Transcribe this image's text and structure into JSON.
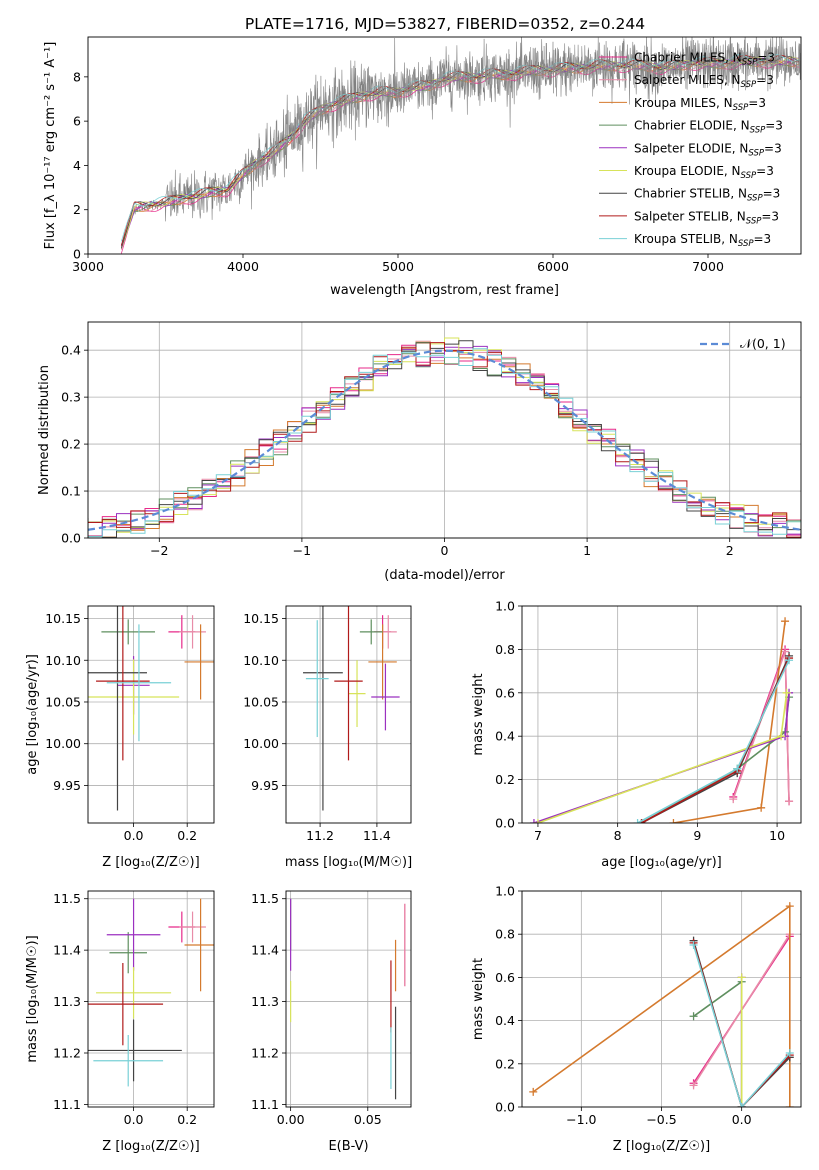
{
  "figure": {
    "title": "PLATE=1716, MJD=53827, FIBERID=0352, z=0.244"
  },
  "series_styles": [
    {
      "name": "Chabrier MILES, N_SSP=3",
      "color": "#e7298a"
    },
    {
      "name": "Salpeter MILES, N_SSP=3",
      "color": "#e88ca8"
    },
    {
      "name": "Kroupa MILES, N_SSP=3",
      "color": "#d47a2e"
    },
    {
      "name": "Chabrier ELODIE, N_SSP=3",
      "color": "#5f8f5f"
    },
    {
      "name": "Salpeter ELODIE, N_SSP=3",
      "color": "#9b30c0"
    },
    {
      "name": "Kroupa ELODIE, N_SSP=3",
      "color": "#d7e35a"
    },
    {
      "name": "Chabrier STELIB, N_SSP=3",
      "color": "#444444"
    },
    {
      "name": "Salpeter STELIB, N_SSP=3",
      "color": "#b11a1a"
    },
    {
      "name": "Kroupa STELIB, N_SSP=3",
      "color": "#79d0d6"
    }
  ],
  "chart_data": [
    {
      "id": "spectrum",
      "type": "line",
      "title": "PLATE=1716, MJD=53827, FIBERID=0352, z=0.244",
      "xlabel": "wavelength [Angstrom, rest frame]",
      "ylabel": "Flux [f_λ 10⁻¹⁷ erg cm⁻² s⁻¹ A⁻¹]",
      "xlim": [
        3000,
        7600
      ],
      "ylim": [
        0,
        9.8
      ],
      "xticks": [
        "3000",
        "4000",
        "5000",
        "6000",
        "7000"
      ],
      "yticks": [
        "0",
        "2",
        "4",
        "6",
        "8"
      ],
      "grid": false,
      "legend_position": "top-right",
      "legend": [
        "Chabrier MILES, N_SSP=3",
        "Salpeter MILES, N_SSP=3",
        "Kroupa MILES, N_SSP=3",
        "Chabrier ELODIE, N_SSP=3",
        "Salpeter ELODIE, N_SSP=3",
        "Kroupa ELODIE, N_SSP=3",
        "Chabrier STELIB, N_SSP=3",
        "Salpeter STELIB, N_SSP=3",
        "Kroupa STELIB, N_SSP=3"
      ],
      "data_envelope": {
        "x": [
          3200,
          3300,
          3400,
          3500,
          3600,
          3700,
          3800,
          3900,
          4000,
          4100,
          4200,
          4300,
          4400,
          4500,
          4600,
          4700,
          4800,
          4900,
          5000,
          5100,
          5200,
          5300,
          5400,
          5500,
          5600,
          5700,
          5800,
          5900,
          6000,
          6100,
          6200,
          6300,
          6400,
          6500,
          6600,
          6700,
          6800,
          6900,
          7000,
          7100,
          7200,
          7300,
          7400,
          7500,
          7600
        ],
        "y": [
          0,
          2.1,
          2.2,
          2.3,
          2.5,
          2.6,
          2.8,
          2.9,
          3.6,
          4.2,
          4.6,
          5.2,
          6.0,
          6.5,
          6.8,
          7.0,
          7.2,
          7.3,
          7.3,
          7.5,
          7.6,
          7.9,
          8.0,
          8.0,
          8.1,
          8.1,
          8.2,
          8.3,
          8.3,
          8.4,
          8.4,
          8.5,
          8.5,
          8.5,
          8.5,
          8.4,
          8.5,
          8.6,
          8.6,
          8.6,
          8.7,
          8.7,
          8.7,
          8.7,
          8.7
        ]
      }
    },
    {
      "id": "residuals",
      "type": "histogram",
      "xlabel": "(data-model)/error",
      "ylabel": "Normed distribution",
      "xlim": [
        -2.5,
        2.5
      ],
      "ylim": [
        0,
        0.46
      ],
      "xticks": [
        "−2",
        "−1",
        "0",
        "1",
        "2"
      ],
      "yticks": [
        "0.0",
        "0.1",
        "0.2",
        "0.3",
        "0.4"
      ],
      "grid": true,
      "legend": [
        "𝒩(0, 1)"
      ],
      "legend_position": "top-right",
      "reference_curve": "standard normal N(0,1)",
      "bin_width": 0.1
    },
    {
      "id": "age_vs_Z",
      "type": "scatter_errorbars",
      "xlabel": "Z [log₁₀(Z/Z☉)]",
      "ylabel": "age  [log₁₀(age/yr)]",
      "xlim": [
        -0.17,
        0.3
      ],
      "ylim": [
        9.905,
        10.165
      ],
      "xticks": [
        "0.0",
        "0.2"
      ],
      "yticks": [
        "9.95",
        "10.00",
        "10.05",
        "10.10",
        "10.15"
      ],
      "grid": true,
      "points": [
        {
          "series": "Chabrier MILES, N_SSP=3",
          "x": 0.18,
          "y": 10.134,
          "xerr": 0.05,
          "yerr": 0.02
        },
        {
          "series": "Salpeter MILES, N_SSP=3",
          "x": 0.22,
          "y": 10.134,
          "xerr": 0.05,
          "yerr": 0.02
        },
        {
          "series": "Kroupa MILES, N_SSP=3",
          "x": 0.25,
          "y": 10.098,
          "xerr": 0.06,
          "yerr": 0.045
        },
        {
          "series": "Chabrier ELODIE, N_SSP=3",
          "x": -0.02,
          "y": 10.134,
          "xerr": 0.1,
          "yerr": 0.015
        },
        {
          "series": "Salpeter ELODIE, N_SSP=3",
          "x": 0.0,
          "y": 10.07,
          "xerr": 0.06,
          "yerr": 0.035
        },
        {
          "series": "Kroupa ELODIE, N_SSP=3",
          "x": 0.0,
          "y": 10.056,
          "xerr": 0.17,
          "yerr": 0.045
        },
        {
          "series": "Chabrier STELIB, N_SSP=3",
          "x": -0.06,
          "y": 10.085,
          "xerr": 0.11,
          "yerr": 0.165
        },
        {
          "series": "Salpeter STELIB, N_SSP=3",
          "x": -0.04,
          "y": 10.075,
          "xerr": 0.1,
          "yerr": 0.095
        },
        {
          "series": "Kroupa STELIB, N_SSP=3",
          "x": 0.02,
          "y": 10.073,
          "xerr": 0.12,
          "yerr": 0.07
        }
      ]
    },
    {
      "id": "age_vs_mass",
      "type": "scatter_errorbars",
      "xlabel": "mass [log₁₀(M/M☉)]",
      "ylabel": "",
      "xlim": [
        11.08,
        11.52
      ],
      "ylim": [
        9.905,
        10.165
      ],
      "xticks": [
        "11.2",
        "11.4"
      ],
      "yticks": [
        "9.95",
        "10.00",
        "10.05",
        "10.10",
        "10.15"
      ],
      "grid": true,
      "points": [
        {
          "series": "Chabrier MILES, N_SSP=3",
          "x": 11.42,
          "y": 10.134,
          "xerr": 0.03,
          "yerr": 0.02
        },
        {
          "series": "Salpeter MILES, N_SSP=3",
          "x": 11.44,
          "y": 10.134,
          "xerr": 0.03,
          "yerr": 0.02
        },
        {
          "series": "Kroupa MILES, N_SSP=3",
          "x": 11.42,
          "y": 10.098,
          "xerr": 0.05,
          "yerr": 0.045
        },
        {
          "series": "Chabrier ELODIE, N_SSP=3",
          "x": 11.38,
          "y": 10.134,
          "xerr": 0.04,
          "yerr": 0.015
        },
        {
          "series": "Salpeter ELODIE, N_SSP=3",
          "x": 11.43,
          "y": 10.056,
          "xerr": 0.05,
          "yerr": 0.04
        },
        {
          "series": "Kroupa ELODIE, N_SSP=3",
          "x": 11.33,
          "y": 10.06,
          "xerr": 0.03,
          "yerr": 0.04
        },
        {
          "series": "Chabrier STELIB, N_SSP=3",
          "x": 11.21,
          "y": 10.085,
          "xerr": 0.07,
          "yerr": 0.165
        },
        {
          "series": "Salpeter STELIB, N_SSP=3",
          "x": 11.3,
          "y": 10.075,
          "xerr": 0.05,
          "yerr": 0.095
        },
        {
          "series": "Kroupa STELIB, N_SSP=3",
          "x": 11.19,
          "y": 10.078,
          "xerr": 0.04,
          "yerr": 0.07
        }
      ]
    },
    {
      "id": "massweight_vs_age",
      "type": "line",
      "xlabel": "age  [log₁₀(age/yr)]",
      "ylabel": "mass weight",
      "xlim": [
        6.8,
        10.3
      ],
      "ylim": [
        0,
        1
      ],
      "xticks": [
        "7",
        "8",
        "9",
        "10"
      ],
      "yticks": [
        "0.0",
        "0.2",
        "0.4",
        "0.6",
        "0.8",
        "1.0"
      ],
      "grid": true,
      "series": [
        {
          "name": "Chabrier MILES, N_SSP=3",
          "x": [
            9.45,
            10.1,
            10.15
          ],
          "y": [
            0.12,
            0.8,
            0.1
          ]
        },
        {
          "name": "Salpeter MILES, N_SSP=3",
          "x": [
            9.45,
            10.1,
            10.15
          ],
          "y": [
            0.11,
            0.79,
            0.1
          ]
        },
        {
          "name": "Kroupa MILES, N_SSP=3",
          "x": [
            8.7,
            9.8,
            10.1
          ],
          "y": [
            0.0,
            0.07,
            0.93
          ]
        },
        {
          "name": "Chabrier ELODIE, N_SSP=3",
          "x": [
            8.3,
            9.5,
            10.1,
            10.15
          ],
          "y": [
            0.0,
            0.25,
            0.42,
            0.58
          ]
        },
        {
          "name": "Salpeter ELODIE, N_SSP=3",
          "x": [
            6.95,
            10.1,
            10.15
          ],
          "y": [
            0.0,
            0.4,
            0.6
          ]
        },
        {
          "name": "Kroupa ELODIE, N_SSP=3",
          "x": [
            7.0,
            10.05,
            10.12
          ],
          "y": [
            0.0,
            0.4,
            0.6
          ]
        },
        {
          "name": "Chabrier STELIB, N_SSP=3",
          "x": [
            8.3,
            9.5,
            10.15
          ],
          "y": [
            0.0,
            0.23,
            0.77
          ]
        },
        {
          "name": "Salpeter STELIB, N_SSP=3",
          "x": [
            8.3,
            9.5,
            10.15
          ],
          "y": [
            0.0,
            0.24,
            0.76
          ]
        },
        {
          "name": "Kroupa STELIB, N_SSP=3",
          "x": [
            8.25,
            9.5,
            10.15
          ],
          "y": [
            0.0,
            0.25,
            0.75
          ]
        }
      ]
    },
    {
      "id": "mass_vs_Z",
      "type": "scatter_errorbars",
      "xlabel": "Z [log₁₀(Z/Z☉)]",
      "ylabel": "mass [log₁₀(M/M☉)]",
      "xlim": [
        -0.17,
        0.3
      ],
      "ylim": [
        11.095,
        11.515
      ],
      "xticks": [
        "0.0",
        "0.2"
      ],
      "yticks": [
        "11.1",
        "11.2",
        "11.3",
        "11.4",
        "11.5"
      ],
      "grid": true,
      "points": [
        {
          "series": "Chabrier MILES, N_SSP=3",
          "x": 0.18,
          "y": 11.445,
          "xerr": 0.05,
          "yerr": 0.03
        },
        {
          "series": "Salpeter MILES, N_SSP=3",
          "x": 0.22,
          "y": 11.445,
          "xerr": 0.05,
          "yerr": 0.03
        },
        {
          "series": "Kroupa MILES, N_SSP=3",
          "x": 0.25,
          "y": 11.41,
          "xerr": 0.06,
          "yerr": 0.09
        },
        {
          "series": "Chabrier ELODIE, N_SSP=3",
          "x": -0.02,
          "y": 11.395,
          "xerr": 0.07,
          "yerr": 0.04
        },
        {
          "series": "Salpeter ELODIE, N_SSP=3",
          "x": 0.0,
          "y": 11.43,
          "xerr": 0.1,
          "yerr": 0.07
        },
        {
          "series": "Kroupa ELODIE, N_SSP=3",
          "x": 0.0,
          "y": 11.317,
          "xerr": 0.14,
          "yerr": 0.05
        },
        {
          "series": "Chabrier STELIB, N_SSP=3",
          "x": 0.0,
          "y": 11.205,
          "xerr": 0.18,
          "yerr": 0.06
        },
        {
          "series": "Salpeter STELIB, N_SSP=3",
          "x": -0.04,
          "y": 11.295,
          "xerr": 0.15,
          "yerr": 0.08
        },
        {
          "series": "Kroupa STELIB, N_SSP=3",
          "x": -0.02,
          "y": 11.185,
          "xerr": 0.13,
          "yerr": 0.05
        }
      ]
    },
    {
      "id": "mass_vs_ebv",
      "type": "scatter_errorbars",
      "xlabel": "E(B-V)",
      "ylabel": "",
      "xlim": [
        -0.003,
        0.078
      ],
      "ylim": [
        11.095,
        11.515
      ],
      "xticks": [
        "0.00",
        "0.05"
      ],
      "yticks": [
        "11.1",
        "11.2",
        "11.3",
        "11.4",
        "11.5"
      ],
      "grid": true,
      "points": [
        {
          "series": "Chabrier MILES, N_SSP=3",
          "x": 0.074,
          "y": 11.41,
          "xerr": 0,
          "yerr": 0.08
        },
        {
          "series": "Salpeter MILES, N_SSP=3",
          "x": 0.074,
          "y": 11.41,
          "xerr": 0,
          "yerr": 0.08
        },
        {
          "series": "Kroupa MILES, N_SSP=3",
          "x": 0.068,
          "y": 11.37,
          "xerr": 0,
          "yerr": 0.05
        },
        {
          "series": "Chabrier ELODIE, N_SSP=3",
          "x": 0.0,
          "y": 11.45,
          "xerr": 0,
          "yerr": 0.05
        },
        {
          "series": "Salpeter ELODIE, N_SSP=3",
          "x": 0.0,
          "y": 11.43,
          "xerr": 0,
          "yerr": 0.07
        },
        {
          "series": "Kroupa ELODIE, N_SSP=3",
          "x": 0.0,
          "y": 11.3,
          "xerr": 0,
          "yerr": 0.04
        },
        {
          "series": "Chabrier STELIB, N_SSP=3",
          "x": 0.068,
          "y": 11.2,
          "xerr": 0,
          "yerr": 0.09
        },
        {
          "series": "Salpeter STELIB, N_SSP=3",
          "x": 0.065,
          "y": 11.31,
          "xerr": 0,
          "yerr": 0.07
        },
        {
          "series": "Kroupa STELIB, N_SSP=3",
          "x": 0.065,
          "y": 11.19,
          "xerr": 0,
          "yerr": 0.06
        }
      ]
    },
    {
      "id": "massweight_vs_Z",
      "type": "line",
      "xlabel": "Z [log₁₀(Z/Z☉)]",
      "ylabel": "mass weight",
      "xlim": [
        -1.37,
        0.37
      ],
      "ylim": [
        0,
        1
      ],
      "xticks": [
        "−1.0",
        "−0.5",
        "0.0"
      ],
      "yticks": [
        "0.0",
        "0.2",
        "0.4",
        "0.6",
        "0.8",
        "1.0"
      ],
      "grid": true,
      "series": [
        {
          "name": "Chabrier MILES, N_SSP=3",
          "x": [
            -0.3,
            0.3
          ],
          "y": [
            0.11,
            0.79
          ]
        },
        {
          "name": "Salpeter MILES, N_SSP=3",
          "x": [
            -0.3,
            0.3
          ],
          "y": [
            0.1,
            0.8
          ]
        },
        {
          "name": "Kroupa MILES, N_SSP=3",
          "x": [
            -1.3,
            0.3,
            0.3
          ],
          "y": [
            0.07,
            0.93,
            0.0
          ]
        },
        {
          "name": "Chabrier ELODIE, N_SSP=3",
          "x": [
            -0.3,
            0.0,
            0.0
          ],
          "y": [
            0.42,
            0.58,
            0.0
          ]
        },
        {
          "name": "Salpeter ELODIE, N_SSP=3",
          "x": [
            0.0,
            0.0
          ],
          "y": [
            0.0,
            0.6
          ]
        },
        {
          "name": "Kroupa ELODIE, N_SSP=3",
          "x": [
            0.0,
            0.0
          ],
          "y": [
            0.0,
            0.6
          ]
        },
        {
          "name": "Chabrier STELIB, N_SSP=3",
          "x": [
            -0.3,
            0.0,
            0.3
          ],
          "y": [
            0.77,
            0.0,
            0.23
          ]
        },
        {
          "name": "Salpeter STELIB, N_SSP=3",
          "x": [
            -0.3,
            0.0,
            0.3
          ],
          "y": [
            0.76,
            0.0,
            0.24
          ]
        },
        {
          "name": "Kroupa STELIB, N_SSP=3",
          "x": [
            -0.3,
            0.0,
            0.3
          ],
          "y": [
            0.75,
            0.0,
            0.25
          ]
        }
      ]
    }
  ]
}
